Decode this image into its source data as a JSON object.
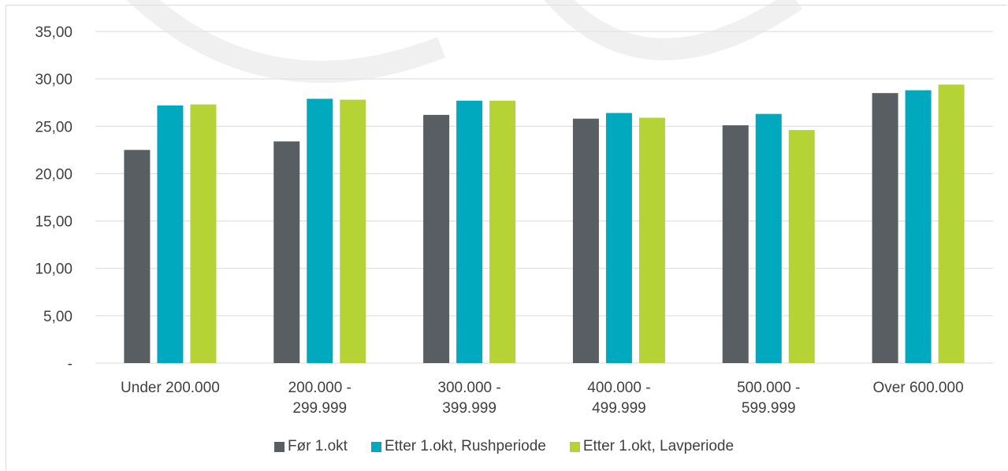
{
  "chart_data": {
    "type": "bar",
    "categories": [
      [
        "Under 200.000"
      ],
      [
        "200.000 -",
        "299.999"
      ],
      [
        "300.000 -",
        "399.999"
      ],
      [
        "400.000 -",
        "499.999"
      ],
      [
        "500.000 -",
        "599.999"
      ],
      [
        "Over 600.000"
      ]
    ],
    "series": [
      {
        "name": "Før 1.okt",
        "color": "#595e62",
        "values": [
          22.5,
          23.4,
          26.2,
          25.8,
          25.1,
          28.5
        ]
      },
      {
        "name": "Etter 1.okt, Rushperiode",
        "color": "#00a9bd",
        "values": [
          27.2,
          27.9,
          27.7,
          26.4,
          26.3,
          28.8
        ]
      },
      {
        "name": "Etter 1.okt, Lavperiode",
        "color": "#b5d334",
        "values": [
          27.3,
          27.8,
          27.7,
          25.9,
          24.6,
          29.4
        ]
      }
    ],
    "ylim": [
      0,
      35
    ],
    "y_ticks": [
      0,
      5,
      10,
      15,
      20,
      25,
      30,
      35
    ],
    "y_tick_labels": [
      "-",
      "5,00",
      "10,00",
      "15,00",
      "20,00",
      "25,00",
      "30,00",
      "35,00"
    ],
    "title": "",
    "xlabel": "",
    "ylabel": "",
    "grid": true,
    "legend_position": "bottom"
  }
}
